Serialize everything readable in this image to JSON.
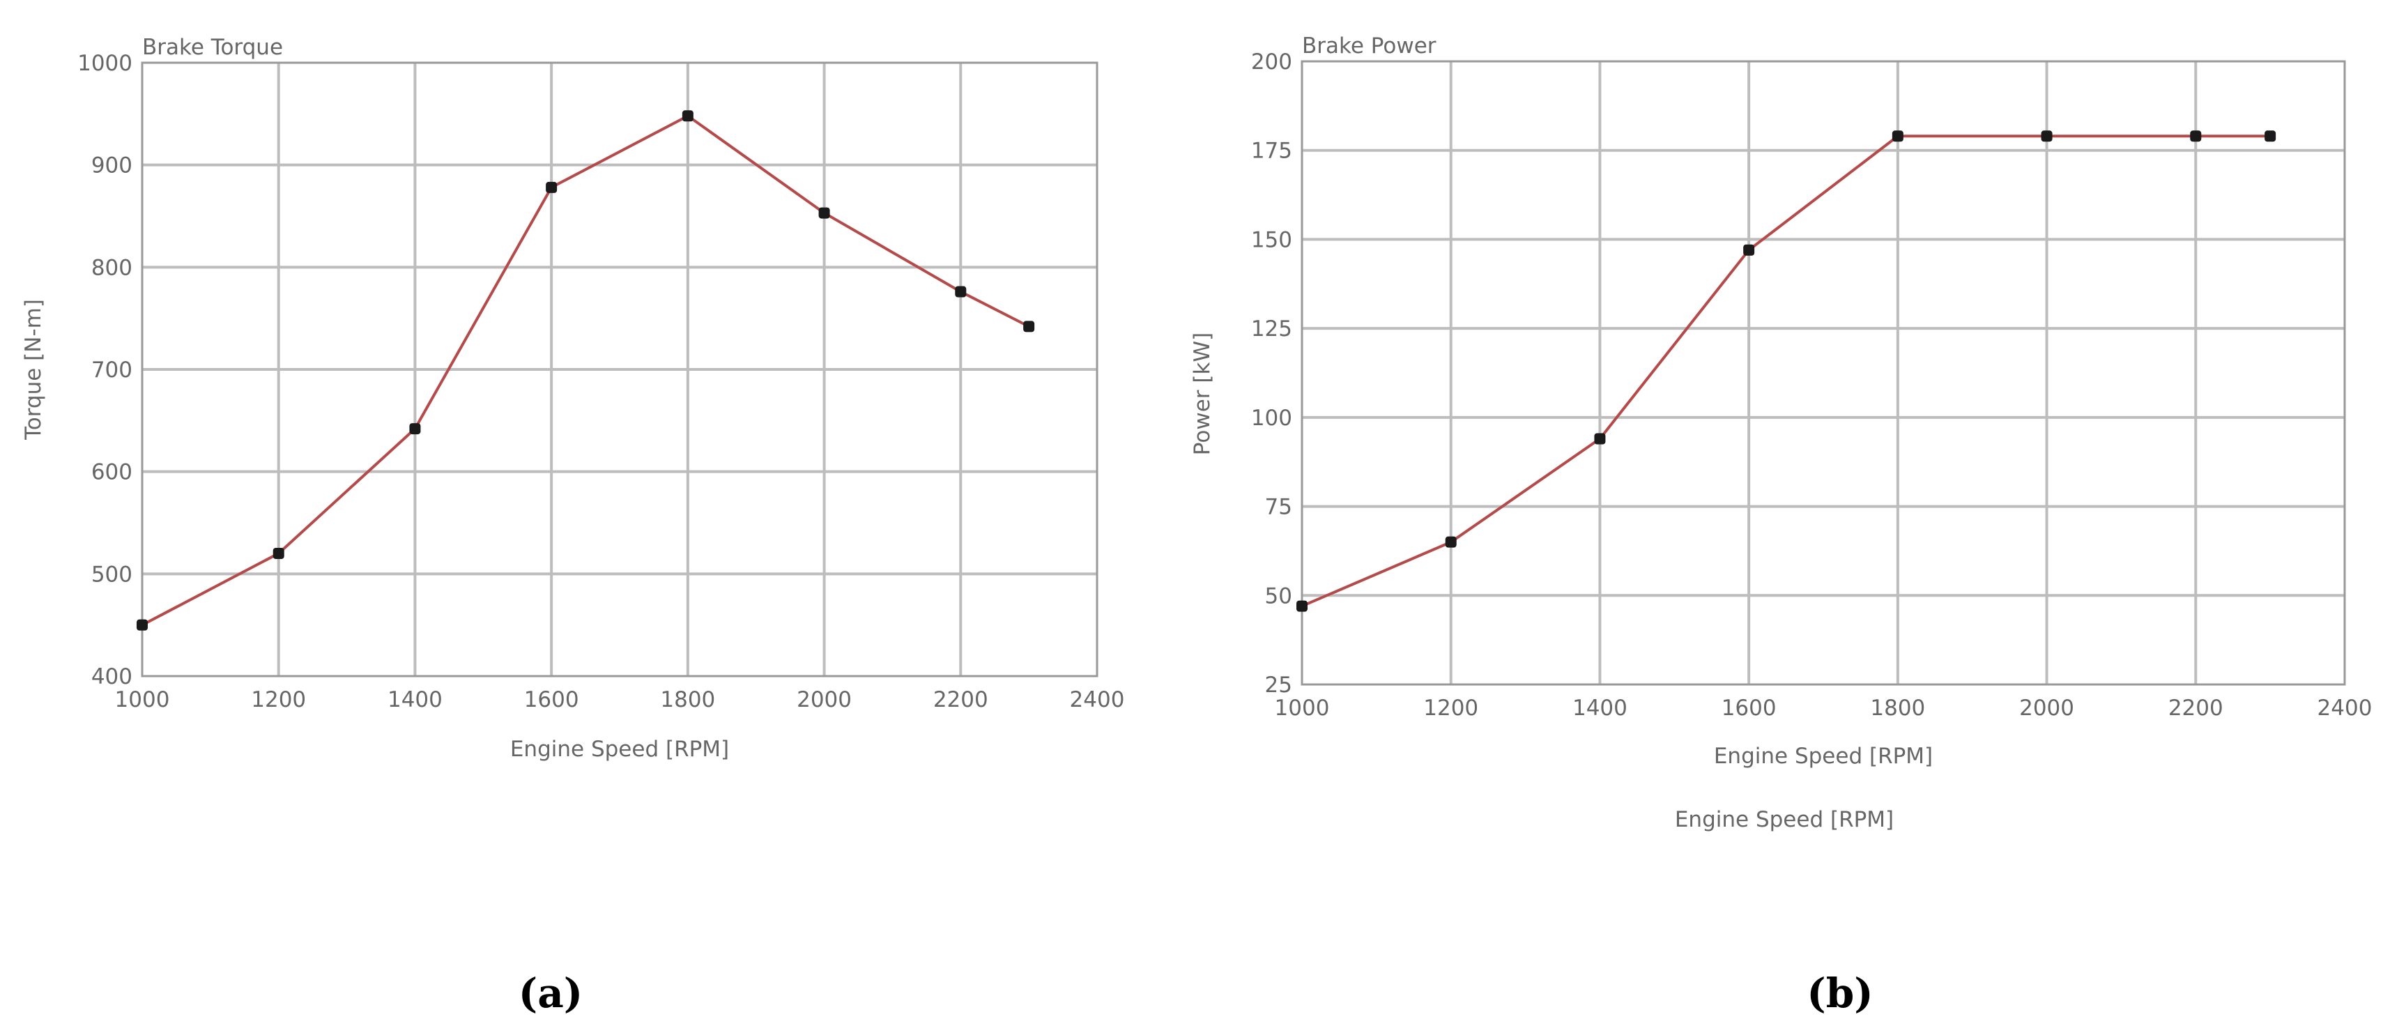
{
  "chart_data": [
    {
      "type": "line",
      "title": "Brake Torque",
      "xlabel": "Engine Speed [RPM]",
      "ylabel": "Torque [N-m]",
      "xlim": [
        1000,
        2400
      ],
      "ylim": [
        400,
        1000
      ],
      "xticks": [
        "1000",
        "1200",
        "1400",
        "1600",
        "1800",
        "2000",
        "2200",
        "2400"
      ],
      "yticks": [
        "400",
        "500",
        "600",
        "700",
        "800",
        "900",
        "1000"
      ],
      "grid": true,
      "x": [
        1000,
        1200,
        1400,
        1600,
        1800,
        2000,
        2200,
        2300
      ],
      "series": [
        {
          "values": [
            450,
            520,
            642,
            878,
            948,
            853,
            776,
            742
          ],
          "color": "#b54a4a"
        }
      ],
      "panel_label": "(a)"
    },
    {
      "type": "line",
      "title": "Brake Power",
      "xlabel": "Engine Speed [RPM]",
      "ylabel": "Power [kW]",
      "xlim": [
        1000,
        2400
      ],
      "ylim": [
        25,
        200
      ],
      "xticks": [
        "1000",
        "1200",
        "1400",
        "1600",
        "1800",
        "2000",
        "2200",
        "2400"
      ],
      "yticks": [
        "25",
        "50",
        "75",
        "100",
        "125",
        "150",
        "175",
        "200"
      ],
      "grid": true,
      "x": [
        1000,
        1200,
        1400,
        1600,
        1800,
        2000,
        2200,
        2300
      ],
      "series": [
        {
          "values": [
            47,
            65,
            94,
            147,
            179,
            179,
            179,
            179
          ],
          "color": "#b54a4a"
        }
      ],
      "extra_label": "Engine Speed [RPM]",
      "panel_label": "(b)"
    }
  ]
}
